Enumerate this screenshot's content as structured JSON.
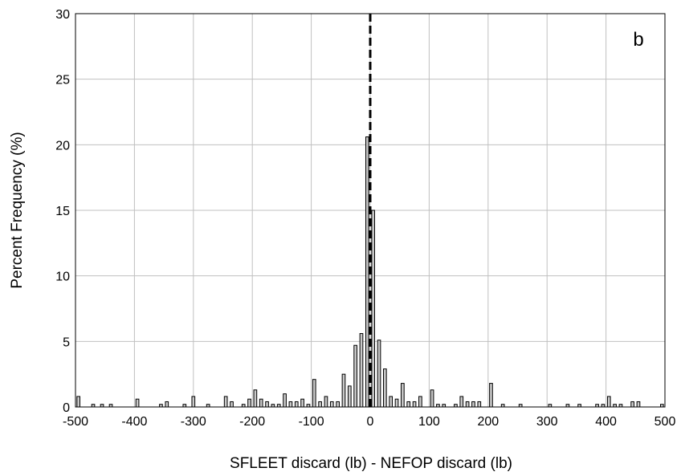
{
  "chart_data": {
    "type": "bar",
    "panel_label": "b",
    "xlabel": "SFLEET discard (lb) - NEFOP discard (lb)",
    "ylabel": "Percent Frequency (%)",
    "xlim": [
      -500,
      500
    ],
    "ylim": [
      0,
      30
    ],
    "xticks": [
      -500,
      -400,
      -300,
      -200,
      -100,
      0,
      100,
      200,
      300,
      400,
      500
    ],
    "yticks": [
      0,
      5,
      10,
      15,
      20,
      25,
      30
    ],
    "grid": true,
    "reference_line": {
      "x": 0,
      "style": "dashed"
    },
    "bin_width": 5,
    "bars": [
      {
        "x": -495,
        "y": 0.8
      },
      {
        "x": -470,
        "y": 0.2
      },
      {
        "x": -455,
        "y": 0.2
      },
      {
        "x": -440,
        "y": 0.2
      },
      {
        "x": -395,
        "y": 0.6
      },
      {
        "x": -355,
        "y": 0.2
      },
      {
        "x": -345,
        "y": 0.4
      },
      {
        "x": -315,
        "y": 0.2
      },
      {
        "x": -300,
        "y": 0.8
      },
      {
        "x": -275,
        "y": 0.2
      },
      {
        "x": -245,
        "y": 0.8
      },
      {
        "x": -235,
        "y": 0.4
      },
      {
        "x": -215,
        "y": 0.2
      },
      {
        "x": -205,
        "y": 0.6
      },
      {
        "x": -195,
        "y": 1.3
      },
      {
        "x": -185,
        "y": 0.6
      },
      {
        "x": -175,
        "y": 0.4
      },
      {
        "x": -165,
        "y": 0.2
      },
      {
        "x": -155,
        "y": 0.2
      },
      {
        "x": -145,
        "y": 1.0
      },
      {
        "x": -135,
        "y": 0.4
      },
      {
        "x": -125,
        "y": 0.4
      },
      {
        "x": -115,
        "y": 0.6
      },
      {
        "x": -105,
        "y": 0.2
      },
      {
        "x": -95,
        "y": 2.1
      },
      {
        "x": -85,
        "y": 0.4
      },
      {
        "x": -75,
        "y": 0.8
      },
      {
        "x": -65,
        "y": 0.4
      },
      {
        "x": -55,
        "y": 0.4
      },
      {
        "x": -45,
        "y": 2.5
      },
      {
        "x": -35,
        "y": 1.6
      },
      {
        "x": -25,
        "y": 4.7
      },
      {
        "x": -15,
        "y": 5.6
      },
      {
        "x": -5,
        "y": 20.6
      },
      {
        "x": 5,
        "y": 15.0
      },
      {
        "x": 15,
        "y": 5.1
      },
      {
        "x": 25,
        "y": 2.9
      },
      {
        "x": 35,
        "y": 0.8
      },
      {
        "x": 45,
        "y": 0.6
      },
      {
        "x": 55,
        "y": 1.8
      },
      {
        "x": 65,
        "y": 0.4
      },
      {
        "x": 75,
        "y": 0.4
      },
      {
        "x": 85,
        "y": 0.8
      },
      {
        "x": 105,
        "y": 1.3
      },
      {
        "x": 115,
        "y": 0.2
      },
      {
        "x": 125,
        "y": 0.2
      },
      {
        "x": 145,
        "y": 0.2
      },
      {
        "x": 155,
        "y": 0.8
      },
      {
        "x": 165,
        "y": 0.4
      },
      {
        "x": 175,
        "y": 0.4
      },
      {
        "x": 185,
        "y": 0.4
      },
      {
        "x": 205,
        "y": 1.8
      },
      {
        "x": 225,
        "y": 0.2
      },
      {
        "x": 255,
        "y": 0.2
      },
      {
        "x": 305,
        "y": 0.2
      },
      {
        "x": 335,
        "y": 0.2
      },
      {
        "x": 355,
        "y": 0.2
      },
      {
        "x": 385,
        "y": 0.2
      },
      {
        "x": 395,
        "y": 0.2
      },
      {
        "x": 405,
        "y": 0.8
      },
      {
        "x": 415,
        "y": 0.2
      },
      {
        "x": 425,
        "y": 0.2
      },
      {
        "x": 445,
        "y": 0.4
      },
      {
        "x": 455,
        "y": 0.4
      },
      {
        "x": 495,
        "y": 0.2
      }
    ],
    "colors": {
      "bar_fill": "#c8c8c8",
      "bar_stroke": "#000000",
      "grid": "#c0c0c0"
    }
  }
}
